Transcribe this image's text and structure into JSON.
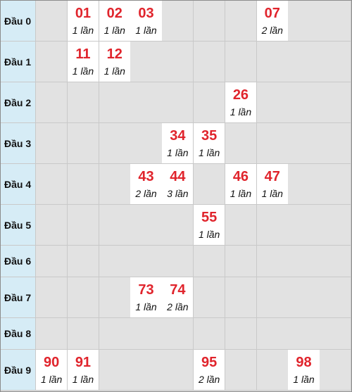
{
  "colors": {
    "number": "#e0242c",
    "count_text": "#111111",
    "header_bg": "#d6ecf6",
    "empty_bg": "#e2e2e2",
    "filled_bg": "#ffffff",
    "grid_line": "#c9c9c9"
  },
  "rows": [
    {
      "label": "Đầu 0",
      "hits": [
        {
          "col": 1,
          "number": "01",
          "count": "1 lần"
        },
        {
          "col": 2,
          "number": "02",
          "count": "1 lần"
        },
        {
          "col": 3,
          "number": "03",
          "count": "1 lần"
        },
        {
          "col": 7,
          "number": "07",
          "count": "2 lần"
        }
      ]
    },
    {
      "label": "Đầu 1",
      "hits": [
        {
          "col": 1,
          "number": "11",
          "count": "1 lần"
        },
        {
          "col": 2,
          "number": "12",
          "count": "1 lần"
        }
      ]
    },
    {
      "label": "Đầu 2",
      "hits": [
        {
          "col": 6,
          "number": "26",
          "count": "1 lần"
        }
      ]
    },
    {
      "label": "Đầu 3",
      "hits": [
        {
          "col": 4,
          "number": "34",
          "count": "1 lần"
        },
        {
          "col": 5,
          "number": "35",
          "count": "1 lần"
        }
      ]
    },
    {
      "label": "Đầu 4",
      "hits": [
        {
          "col": 3,
          "number": "43",
          "count": "2 lần"
        },
        {
          "col": 4,
          "number": "44",
          "count": "3 lần"
        },
        {
          "col": 6,
          "number": "46",
          "count": "1 lần"
        },
        {
          "col": 7,
          "number": "47",
          "count": "1 lần"
        }
      ]
    },
    {
      "label": "Đầu 5",
      "hits": [
        {
          "col": 5,
          "number": "55",
          "count": "1 lần"
        }
      ]
    },
    {
      "label": "Đầu 6",
      "hits": []
    },
    {
      "label": "Đầu 7",
      "hits": [
        {
          "col": 3,
          "number": "73",
          "count": "1 lần"
        },
        {
          "col": 4,
          "number": "74",
          "count": "2 lần"
        }
      ]
    },
    {
      "label": "Đầu 8",
      "hits": []
    },
    {
      "label": "Đầu 9",
      "hits": [
        {
          "col": 0,
          "number": "90",
          "count": "1 lần"
        },
        {
          "col": 1,
          "number": "91",
          "count": "1 lần"
        },
        {
          "col": 5,
          "number": "95",
          "count": "2 lần"
        },
        {
          "col": 8,
          "number": "98",
          "count": "1 lần"
        }
      ]
    }
  ]
}
